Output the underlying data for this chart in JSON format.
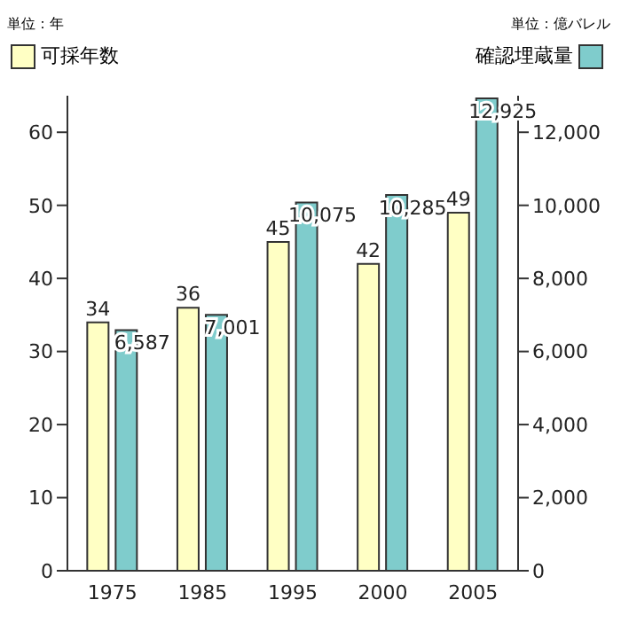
{
  "chart_data": {
    "type": "bar",
    "categories": [
      "1975",
      "1985",
      "1995",
      "2000",
      "2005"
    ],
    "series": [
      {
        "name": "可採年数",
        "color": "#ffffc4",
        "values": [
          34,
          36,
          45,
          42,
          49
        ],
        "value_labels": [
          "34",
          "36",
          "45",
          "42",
          "49"
        ]
      },
      {
        "name": "確認埋蔵量",
        "color": "#7fcccc",
        "values": [
          6587,
          7001,
          10075,
          10285,
          12925
        ],
        "value_labels": [
          "6,587",
          "7,001",
          "10,075",
          "10,285",
          "12,925"
        ],
        "axis": "y2"
      }
    ],
    "ylim": [
      0,
      65
    ],
    "yticks": [
      0,
      10,
      20,
      30,
      40,
      50,
      60
    ],
    "y2lim": [
      0,
      13000
    ],
    "y2ticks": [
      {
        "value": 0,
        "label": "0"
      },
      {
        "value": 2000,
        "label": "2,000"
      },
      {
        "value": 4000,
        "label": "4,000"
      },
      {
        "value": 6000,
        "label": "6,000"
      },
      {
        "value": 8000,
        "label": "8,000"
      },
      {
        "value": 10000,
        "label": "10,000"
      },
      {
        "value": 12000,
        "label": "12,000"
      }
    ],
    "annotations": [
      "単位：年",
      "単位：億バレル"
    ],
    "legend": "top",
    "grid": false
  }
}
